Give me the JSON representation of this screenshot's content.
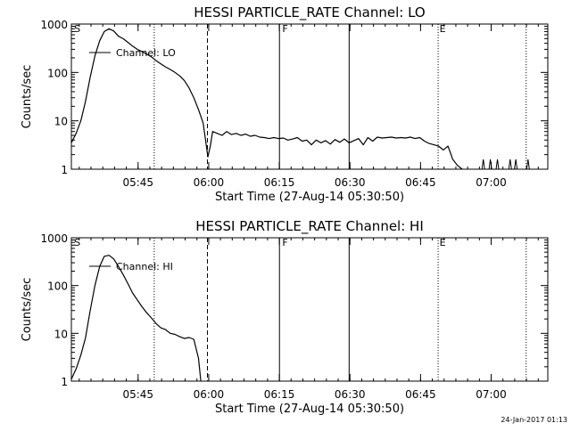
{
  "footer": {
    "timestamp": "24-Jan-2017 01:13"
  },
  "chart_data": [
    {
      "type": "line",
      "title": "HESSI PARTICLE_RATE Channel: LO",
      "xlabel": "Start Time (27-Aug-14 05:30:50)",
      "ylabel": "Counts/sec",
      "y_scale": "log",
      "ylim": [
        1,
        1000
      ],
      "x_unit": "minutes since 05:30:50",
      "xlim": [
        0,
        101.2
      ],
      "x_ticks": [
        {
          "t": 14.17,
          "label": "05:45"
        },
        {
          "t": 29.17,
          "label": "06:00"
        },
        {
          "t": 44.17,
          "label": "06:15"
        },
        {
          "t": 59.17,
          "label": "06:30"
        },
        {
          "t": 74.17,
          "label": "06:45"
        },
        {
          "t": 89.17,
          "label": "07:00"
        }
      ],
      "y_ticks": [
        {
          "v": 1,
          "label": "1"
        },
        {
          "v": 10,
          "label": "10"
        },
        {
          "v": 100,
          "label": "100"
        },
        {
          "v": 1000,
          "label": "1000"
        }
      ],
      "flags": [
        {
          "t": 0.4,
          "label": "S"
        },
        {
          "t": 44.6,
          "label": "F"
        },
        {
          "t": 78.0,
          "label": "E"
        }
      ],
      "markers": [
        {
          "t": 17.6,
          "style": "dotted"
        },
        {
          "t": 28.9,
          "style": "dashed"
        },
        {
          "t": 44.2,
          "style": "solid"
        },
        {
          "t": 59.0,
          "style": "solid"
        },
        {
          "t": 77.9,
          "style": "dotted"
        },
        {
          "t": 96.6,
          "style": "dotted"
        }
      ],
      "legend": {
        "label": "Channel: LO",
        "placement": "top-left"
      },
      "series": [
        {
          "name": "Channel: LO",
          "x": [
            0,
            1,
            2,
            3,
            4,
            5,
            6,
            7,
            8,
            9,
            10,
            11,
            12,
            13,
            14,
            15,
            16,
            17,
            18,
            19,
            20,
            21,
            22,
            23,
            24,
            25,
            26,
            27,
            28,
            28.5,
            29,
            29.5,
            30,
            31,
            32,
            33,
            34,
            35,
            36,
            37,
            38,
            39,
            40,
            41,
            42,
            43,
            44,
            45,
            46,
            47,
            48,
            49,
            50,
            51,
            52,
            53,
            54,
            55,
            56,
            57,
            58,
            59,
            60,
            61,
            62,
            63,
            64,
            65,
            66,
            67,
            68,
            69,
            70,
            71,
            72,
            73,
            74,
            75,
            76,
            77,
            78,
            79,
            80,
            80.5,
            81,
            82,
            83
          ],
          "y": [
            3.5,
            5.5,
            10,
            25,
            80,
            220,
            450,
            700,
            800,
            720,
            560,
            500,
            420,
            350,
            300,
            270,
            240,
            210,
            175,
            150,
            130,
            115,
            100,
            85,
            68,
            48,
            30,
            17,
            9,
            4,
            1.8,
            3,
            6,
            5.5,
            5,
            6,
            5.2,
            5.5,
            5,
            5.3,
            4.8,
            5,
            4.6,
            4.5,
            4.3,
            4.5,
            4.3,
            4.4,
            4,
            4.2,
            4.5,
            3.8,
            4,
            3.2,
            4,
            3.5,
            3.9,
            3.3,
            4.1,
            3.6,
            4.2,
            3.5,
            3.9,
            4.3,
            3.2,
            4.5,
            3.8,
            4.6,
            4.4,
            4.5,
            4.6,
            4.4,
            4.5,
            4.4,
            4.6,
            4.3,
            4.5,
            3.8,
            3.4,
            3.2,
            3,
            2.5,
            3,
            2.2,
            1.6,
            1.2,
            1
          ]
        }
      ]
    },
    {
      "type": "line",
      "title": "HESSI PARTICLE_RATE Channel: HI",
      "xlabel": "Start Time (27-Aug-14 05:30:50)",
      "ylabel": "Counts/sec",
      "y_scale": "log",
      "ylim": [
        1,
        1000
      ],
      "x_unit": "minutes since 05:30:50",
      "xlim": [
        0,
        101.2
      ],
      "x_ticks": [
        {
          "t": 14.17,
          "label": "05:45"
        },
        {
          "t": 29.17,
          "label": "06:00"
        },
        {
          "t": 44.17,
          "label": "06:15"
        },
        {
          "t": 59.17,
          "label": "06:30"
        },
        {
          "t": 74.17,
          "label": "06:45"
        },
        {
          "t": 89.17,
          "label": "07:00"
        }
      ],
      "y_ticks": [
        {
          "v": 1,
          "label": "1"
        },
        {
          "v": 10,
          "label": "10"
        },
        {
          "v": 100,
          "label": "100"
        },
        {
          "v": 1000,
          "label": "1000"
        }
      ],
      "flags": [
        {
          "t": 0.4,
          "label": "S"
        },
        {
          "t": 44.6,
          "label": "F"
        },
        {
          "t": 78.0,
          "label": "E"
        }
      ],
      "markers": [
        {
          "t": 17.6,
          "style": "dotted"
        },
        {
          "t": 28.9,
          "style": "dashed"
        },
        {
          "t": 44.2,
          "style": "solid"
        },
        {
          "t": 59.0,
          "style": "solid"
        },
        {
          "t": 77.9,
          "style": "dotted"
        },
        {
          "t": 96.6,
          "style": "dotted"
        }
      ],
      "legend": {
        "label": "Channel: HI",
        "placement": "top-left"
      },
      "series": [
        {
          "name": "Channel: HI",
          "x": [
            0,
            1,
            2,
            3,
            4,
            5,
            6,
            7,
            8,
            9,
            10,
            11,
            12,
            13,
            14,
            15,
            16,
            17,
            18,
            19,
            20,
            21,
            22,
            23,
            24,
            25,
            26,
            27,
            27.5
          ],
          "y": [
            1.1,
            1.8,
            3.5,
            8,
            30,
            100,
            250,
            410,
            430,
            360,
            250,
            170,
            110,
            70,
            50,
            36,
            27,
            21,
            16,
            13,
            12,
            10,
            9.5,
            8.5,
            7.8,
            8.2,
            7.5,
            3,
            1
          ]
        }
      ]
    }
  ]
}
